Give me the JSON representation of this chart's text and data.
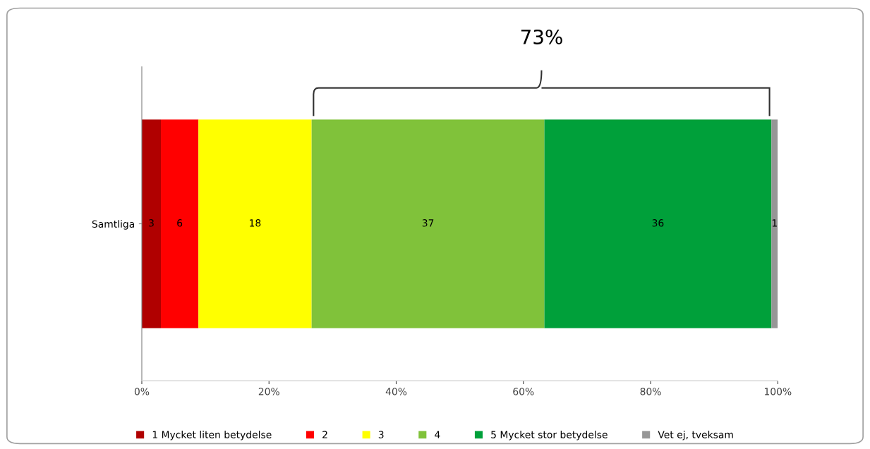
{
  "chart_data": {
    "type": "bar",
    "orientation": "horizontal",
    "stacked": true,
    "categories": [
      "Samtliga"
    ],
    "series": [
      {
        "name": "1 Mycket liten betydelse",
        "color": "#b00000",
        "values": [
          3.0
        ],
        "value_labels": [
          "3"
        ]
      },
      {
        "name": "2",
        "color": "#ff0000",
        "values": [
          5.9
        ],
        "value_labels": [
          "6"
        ]
      },
      {
        "name": "3",
        "color": "#ffff00",
        "values": [
          17.8
        ],
        "value_labels": [
          "18"
        ]
      },
      {
        "name": "4",
        "color": "#80c23a",
        "values": [
          36.6
        ],
        "value_labels": [
          "37"
        ]
      },
      {
        "name": "5 Mycket stor betydelse",
        "color": "#00a03a",
        "values": [
          35.7
        ],
        "value_labels": [
          "36"
        ]
      },
      {
        "name": "Vet ej, tveksam",
        "color": "#969696",
        "values": [
          1.0
        ],
        "value_labels": [
          "1"
        ]
      }
    ],
    "xlim": [
      0,
      100
    ],
    "xticks": [
      {
        "value": 0,
        "label": "0%"
      },
      {
        "value": 20,
        "label": "20%"
      },
      {
        "value": 40,
        "label": "40%"
      },
      {
        "value": 60,
        "label": "60%"
      },
      {
        "value": 80,
        "label": "80%"
      },
      {
        "value": 100,
        "label": "100%"
      }
    ],
    "annotations": [
      "73%"
    ],
    "grid": false,
    "legend": "bottom"
  }
}
